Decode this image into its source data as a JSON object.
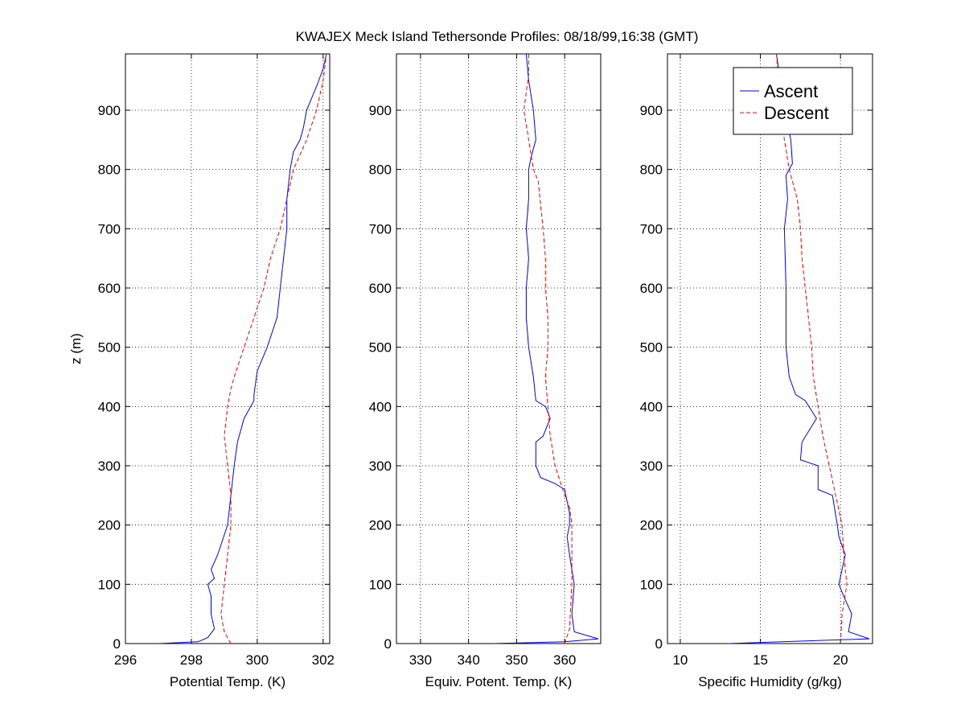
{
  "title": "KWAJEX Meck Island Tethersonde Profiles: 08/18/99,16:38 (GMT)",
  "chart_data": [
    {
      "type": "line",
      "xlabel": "Potential Temp. (K)",
      "ylabel": "z (m)",
      "xlim": [
        296,
        302.2
      ],
      "ylim": [
        0,
        995
      ],
      "xticks": [
        "296",
        "298",
        "300",
        "302"
      ],
      "yticks": [
        "0",
        "100",
        "200",
        "300",
        "400",
        "500",
        "600",
        "700",
        "800",
        "900"
      ],
      "grid": true,
      "series": [
        {
          "name": "Ascent",
          "color": "#0000ff",
          "style": "solid",
          "x": [
            297.0,
            298.2,
            298.5,
            298.7,
            298.6,
            298.6,
            298.5,
            298.7,
            298.6,
            298.8,
            299.1,
            299.2,
            299.3,
            299.4,
            299.6,
            299.9,
            299.9,
            300.0,
            300.3,
            300.6,
            300.7,
            300.8,
            300.9,
            300.9,
            301.0,
            301.1,
            301.3,
            301.4,
            301.5,
            301.8,
            302.0,
            302.1
          ],
          "y": [
            0,
            3,
            10,
            25,
            50,
            80,
            100,
            110,
            125,
            150,
            200,
            250,
            300,
            340,
            380,
            410,
            420,
            460,
            500,
            550,
            600,
            650,
            700,
            750,
            800,
            830,
            850,
            870,
            900,
            940,
            970,
            995
          ]
        },
        {
          "name": "Descent",
          "color": "#ff0000",
          "style": "dashed",
          "x": [
            299.2,
            299.0,
            298.9,
            299.0,
            299.1,
            299.2,
            299.2,
            299.1,
            299.0,
            299.1,
            299.2,
            299.3,
            299.6,
            299.9,
            300.2,
            300.4,
            300.7,
            300.9,
            301.1,
            301.5,
            301.8,
            302.0,
            302.1
          ],
          "y": [
            0,
            20,
            50,
            100,
            150,
            200,
            250,
            300,
            350,
            400,
            430,
            450,
            500,
            550,
            600,
            650,
            700,
            750,
            800,
            850,
            900,
            950,
            995
          ]
        }
      ]
    },
    {
      "type": "line",
      "xlabel": "Equiv. Potent. Temp. (K)",
      "ylabel": "",
      "xlim": [
        325,
        367.5
      ],
      "ylim": [
        0,
        995
      ],
      "xticks": [
        "330",
        "340",
        "350",
        "360"
      ],
      "yticks": [
        "0",
        "100",
        "200",
        "300",
        "400",
        "500",
        "600",
        "700",
        "800",
        "900"
      ],
      "grid": true,
      "series": [
        {
          "name": "Ascent",
          "color": "#0000ff",
          "style": "solid",
          "x": [
            345.0,
            360.0,
            367.0,
            362.0,
            361.5,
            362.0,
            361.0,
            360.5,
            361.0,
            361.0,
            360.0,
            358.0,
            355.0,
            354.0,
            354.0,
            355.5,
            357.0,
            356.0,
            354.0,
            353.5,
            352.5,
            352.0,
            352.0,
            352.5,
            352.0,
            352.5,
            352.5,
            353.0,
            354.0,
            353.5,
            352.5,
            352.0
          ],
          "y": [
            0,
            3,
            8,
            20,
            50,
            100,
            150,
            180,
            200,
            220,
            260,
            270,
            280,
            300,
            340,
            350,
            380,
            400,
            410,
            450,
            500,
            550,
            600,
            650,
            700,
            750,
            800,
            820,
            850,
            900,
            950,
            995
          ]
        },
        {
          "name": "Descent",
          "color": "#ff0000",
          "style": "dashed",
          "x": [
            360.0,
            361.0,
            361.5,
            361.5,
            361.5,
            361.0,
            360.0,
            358.0,
            357.0,
            356.5,
            356.0,
            356.5,
            356.5,
            356.0,
            356.0,
            355.5,
            355.0,
            354.5,
            353.5,
            352.5,
            351.5,
            352.0,
            352.5,
            352.5
          ],
          "y": [
            0,
            25,
            100,
            150,
            200,
            230,
            250,
            300,
            350,
            400,
            450,
            500,
            550,
            600,
            650,
            700,
            740,
            780,
            800,
            850,
            900,
            930,
            960,
            995
          ]
        }
      ]
    },
    {
      "type": "line",
      "xlabel": "Specific Humidity (g/kg)",
      "ylabel": "",
      "xlim": [
        9.2,
        22
      ],
      "ylim": [
        0,
        995
      ],
      "xticks": [
        "10",
        "15",
        "20"
      ],
      "yticks": [
        "0",
        "100",
        "200",
        "300",
        "400",
        "500",
        "600",
        "700",
        "800",
        "900"
      ],
      "grid": true,
      "series": [
        {
          "name": "Ascent",
          "color": "#0000ff",
          "style": "solid",
          "x": [
            13.0,
            21.8,
            20.5,
            20.7,
            20.2,
            19.9,
            20.3,
            19.9,
            19.8,
            19.5,
            18.6,
            18.6,
            17.5,
            17.6,
            18.5,
            17.8,
            17.2,
            16.8,
            16.6,
            16.6,
            16.5,
            16.7,
            16.6,
            17.0,
            16.9,
            16.5,
            16.0
          ],
          "y": [
            0,
            8,
            20,
            50,
            80,
            100,
            150,
            180,
            200,
            250,
            260,
            300,
            310,
            340,
            380,
            410,
            420,
            450,
            500,
            600,
            700,
            750,
            790,
            810,
            850,
            900,
            995
          ]
        },
        {
          "name": "Descent",
          "color": "#ff0000",
          "style": "dashed",
          "x": [
            20.0,
            20.1,
            20.4,
            20.2,
            20.1,
            19.7,
            19.3,
            18.9,
            18.6,
            18.3,
            18.2,
            18.0,
            17.8,
            17.6,
            17.5,
            17.3,
            17.0,
            16.8,
            16.5,
            16.3,
            16.0
          ],
          "y": [
            0,
            50,
            100,
            150,
            200,
            250,
            300,
            350,
            400,
            450,
            500,
            550,
            600,
            650,
            700,
            750,
            780,
            800,
            850,
            900,
            995
          ]
        }
      ]
    }
  ],
  "legend": {
    "placement": "top-right",
    "entries": [
      "Ascent",
      "Descent"
    ]
  }
}
